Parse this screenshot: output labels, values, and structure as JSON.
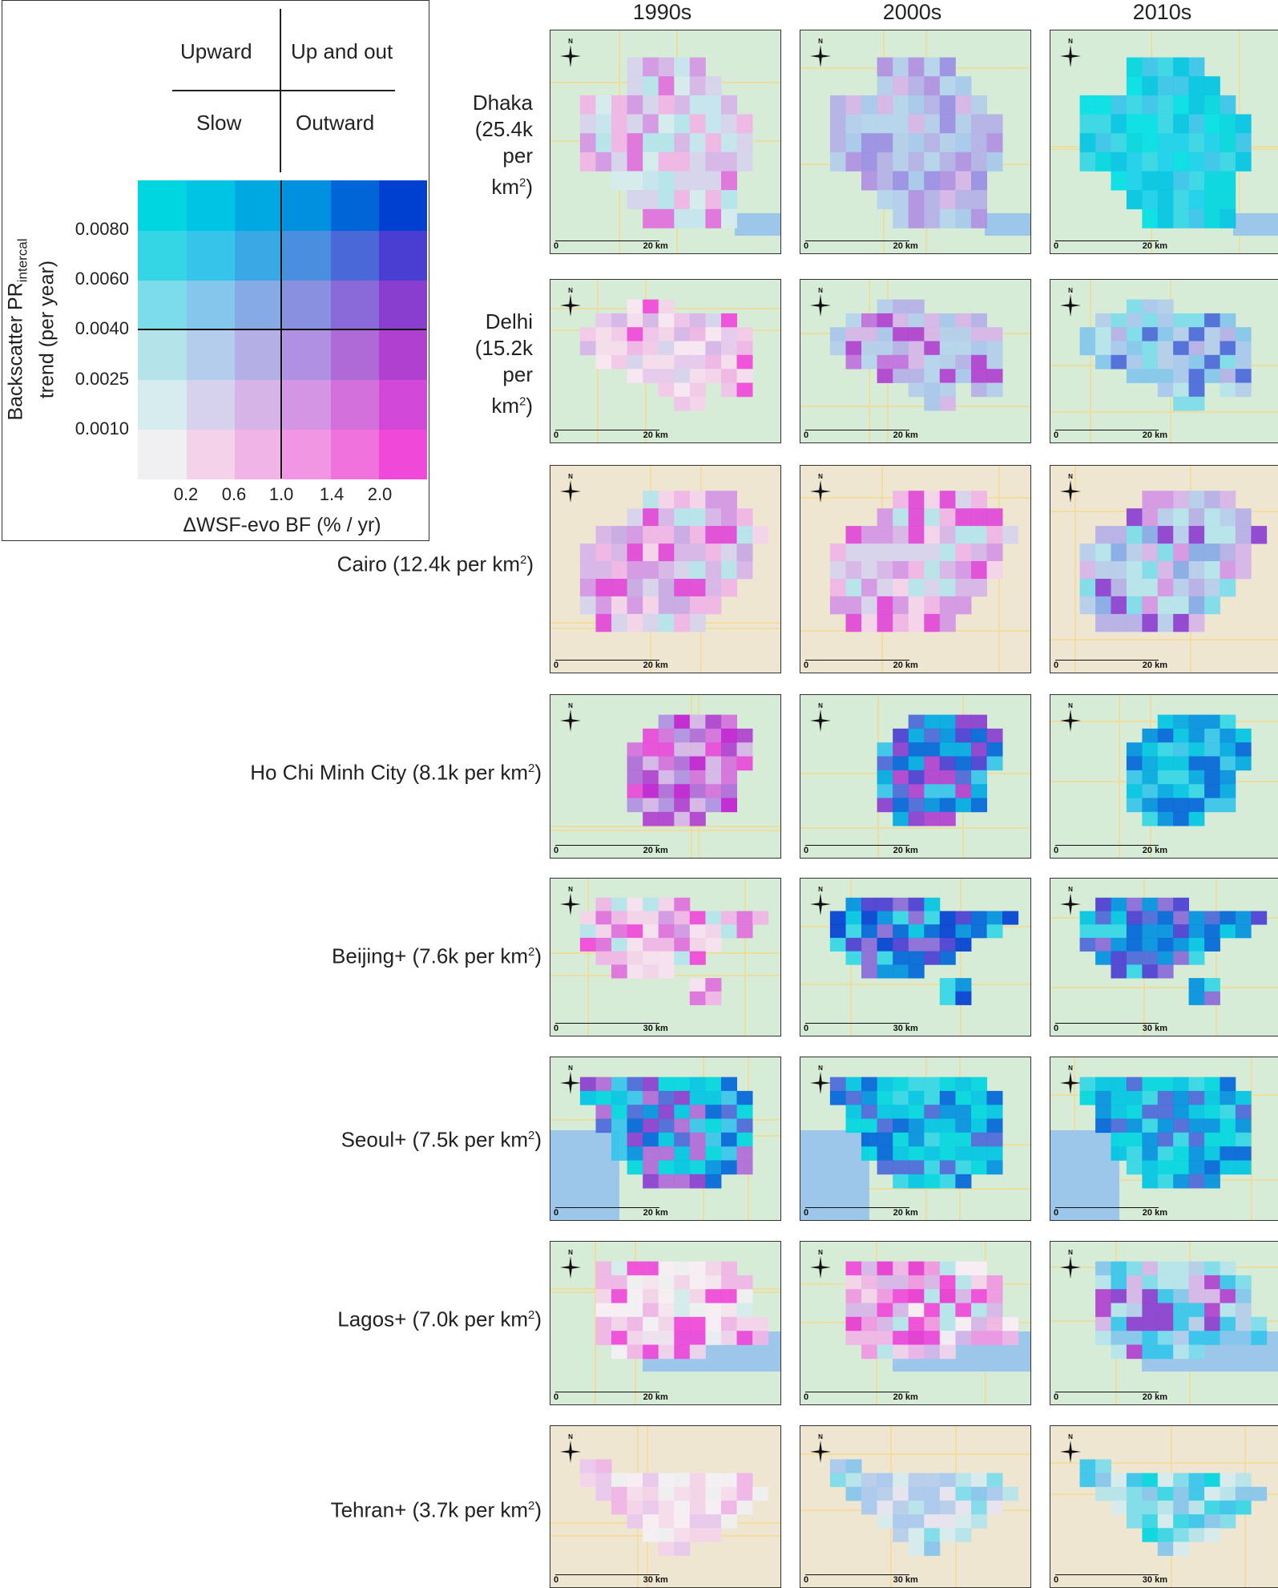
{
  "legend": {
    "quadrants": {
      "top_left": "Upward",
      "top_right": "Up and out",
      "bottom_left": "Slow",
      "bottom_right": "Outward"
    },
    "y_axis_label_line1": "Backscatter PR",
    "y_axis_label_sub": "intercal",
    "y_axis_label_line2": "trend (per year)",
    "y_ticks": [
      "0.0080",
      "0.0060",
      "0.0040",
      "0.0025",
      "0.0010"
    ],
    "x_axis_label": "ΔWSF-evo BF (% / yr)",
    "x_ticks": [
      "0.2",
      "0.6",
      "1.0",
      "1.4",
      "2.0"
    ],
    "colors": [
      [
        "#00d6e0",
        "#00c4e4",
        "#00a8e2",
        "#0090e0",
        "#0066d8",
        "#0040d0"
      ],
      [
        "#34d6e6",
        "#36c4ea",
        "#3aa8e4",
        "#4a8ee0",
        "#4a68d8",
        "#4a3ed2"
      ],
      [
        "#7cdceb",
        "#84c6ec",
        "#86aae6",
        "#8a90e0",
        "#8a6ad8",
        "#8a3ed0"
      ],
      [
        "#b4e4ea",
        "#b4cdec",
        "#b4b0e6",
        "#b090e2",
        "#b06ad8",
        "#b040d0"
      ],
      [
        "#d6ecee",
        "#d6d2ee",
        "#d6b4e8",
        "#d496e4",
        "#d470dc",
        "#d248d8"
      ],
      [
        "#f0f0f2",
        "#f4d2ea",
        "#f0b4e6",
        "#f096e2",
        "#f072dc",
        "#f048d8"
      ]
    ]
  },
  "decades": [
    "1990s",
    "2000s",
    "2010s"
  ],
  "cities": [
    {
      "label": "Dhaka (25.4k per km",
      "sup": "2",
      "suffix": ")",
      "scale": "20 km"
    },
    {
      "label": "Delhi (15.2k per km",
      "sup": "2",
      "suffix": ")",
      "scale": "20 km"
    },
    {
      "label": "Cairo (12.4k per km",
      "sup": "2",
      "suffix": ")",
      "scale": "20 km"
    },
    {
      "label": "Ho Chi Minh City (8.1k per km",
      "sup": "2",
      "suffix": ")",
      "scale": "20 km"
    },
    {
      "label": "Beijing+ (7.6k per km",
      "sup": "2",
      "suffix": ")",
      "scale": "30 km"
    },
    {
      "label": "Seoul+ (7.5k per km",
      "sup": "2",
      "suffix": ")",
      "scale": "20 km"
    },
    {
      "label": "Lagos+ (7.0k per km",
      "sup": "2",
      "suffix": ")",
      "scale": "20 km"
    },
    {
      "label": "Tehran+ (3.7k per km",
      "sup": "2",
      "suffix": ")",
      "scale": "30 km"
    }
  ],
  "scale_zero": "0",
  "north_letter": "N"
}
